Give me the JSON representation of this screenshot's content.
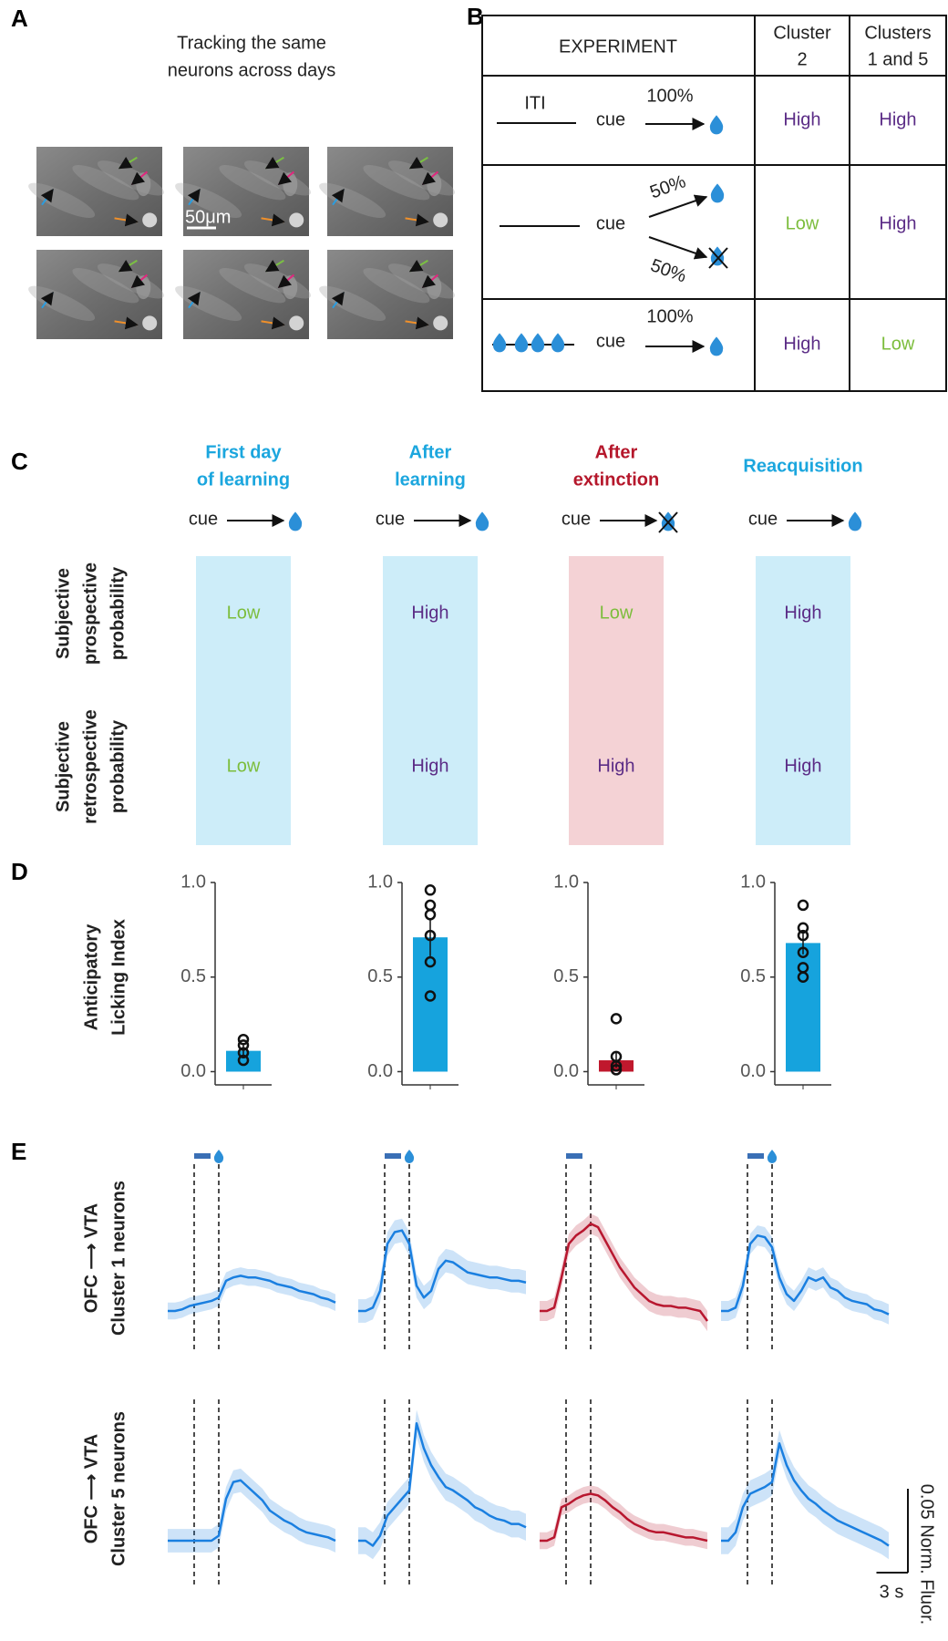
{
  "panel_labels": [
    "A",
    "B",
    "C",
    "D",
    "E"
  ],
  "level_colors": {
    "High": "#5b2c86",
    "Low": "#7cbd3c"
  },
  "panel_a": {
    "title_lines": [
      "Tracking the same",
      "neurons across days"
    ],
    "scale_bar": "50μm"
  },
  "panel_b": {
    "header": {
      "experiment": "EXPERIMENT",
      "col1": [
        "Cluster",
        "2"
      ],
      "col2": [
        "Clusters",
        "1 and 5"
      ]
    },
    "rows": [
      {
        "iti": "ITI",
        "cue": "cue",
        "prob": "100%",
        "cluster2": "High",
        "clusters15": "High"
      },
      {
        "cue": "cue",
        "prob_up": "50%",
        "prob_down": "50%",
        "cluster2": "Low",
        "clusters15": "High"
      },
      {
        "cue": "cue",
        "prob": "100%",
        "cluster2": "High",
        "clusters15": "Low"
      }
    ]
  },
  "panel_c": {
    "row_labels": [
      [
        "Subjective",
        "prospective",
        "probability"
      ],
      [
        "Subjective",
        "retrospective",
        "probability"
      ]
    ],
    "columns": [
      {
        "title": [
          "First day",
          "of learning"
        ],
        "color": "#1ba6de",
        "box_color": "#cdedf9",
        "cue": "cue",
        "prospective": "Low",
        "retrospective": "Low"
      },
      {
        "title": [
          "After",
          "learning"
        ],
        "color": "#1ba6de",
        "box_color": "#cdedf9",
        "cue": "cue",
        "prospective": "High",
        "retrospective": "High"
      },
      {
        "title": [
          "After",
          "extinction"
        ],
        "color": "#b5172b",
        "box_color": "#f4d2d5",
        "cue": "cue",
        "prospective": "Low",
        "retrospective": "High"
      },
      {
        "title": [
          "Reacquisition"
        ],
        "color": "#1ba6de",
        "box_color": "#cdedf9",
        "cue": "cue",
        "prospective": "High",
        "retrospective": "High"
      }
    ]
  },
  "chart_data": [
    {
      "type": "bar",
      "ylabel": [
        "Anticipatory",
        "Licking Index"
      ],
      "ylim": [
        -0.07,
        1
      ],
      "yticks": [
        {
          "value": 0,
          "label": "0.0"
        },
        {
          "value": 0.5,
          "label": "0.5"
        },
        {
          "value": 1,
          "label": "1.0"
        }
      ],
      "values": [
        0.11,
        0.71,
        0.06,
        0.68
      ],
      "errors": [
        0.03,
        0.1,
        0.04,
        0.06
      ],
      "colors": [
        "#16a3dd",
        "#16a3dd",
        "#c0182d",
        "#16a3dd"
      ],
      "points": [
        [
          0.17,
          0.14,
          0.1,
          0.06
        ],
        [
          0.96,
          0.88,
          0.83,
          0.72,
          0.58,
          0.4
        ],
        [
          0.28,
          0.08,
          0.03,
          0.01
        ],
        [
          0.88,
          0.76,
          0.72,
          0.63,
          0.55,
          0.5
        ]
      ]
    },
    {
      "type": "line",
      "row_labels": [
        [
          "OFC ⟶ VTA",
          "Cluster 1 neurons"
        ],
        [
          "OFC ⟶ VTA",
          "Cluster 5 neurons"
        ]
      ],
      "scale_y": {
        "value": 0.05,
        "label": "0.05 Norm. Fluor."
      },
      "scale_x": {
        "value": 3,
        "label": "3 s"
      },
      "rows": [
        {
          "series": [
            {
              "color": "#1a7fe0",
              "sem": 0.005,
              "values": [
                0,
                0,
                0.001,
                0.003,
                0.004,
                0.005,
                0.006,
                0.008,
                0.018,
                0.02,
                0.021,
                0.02,
                0.02,
                0.019,
                0.018,
                0.016,
                0.015,
                0.014,
                0.012,
                0.011,
                0.01,
                0.008,
                0.007,
                0.005
              ]
            },
            {
              "color": "#1a7fe0",
              "sem": 0.007,
              "values": [
                0,
                0,
                0.002,
                0.012,
                0.04,
                0.047,
                0.048,
                0.04,
                0.015,
                0.008,
                0.012,
                0.025,
                0.03,
                0.029,
                0.026,
                0.023,
                0.022,
                0.021,
                0.02,
                0.02,
                0.019,
                0.018,
                0.018,
                0.017
              ]
            },
            {
              "color": "#b8172f",
              "sem": 0.006,
              "values": [
                0,
                0,
                0.002,
                0.02,
                0.04,
                0.045,
                0.048,
                0.052,
                0.05,
                0.042,
                0.034,
                0.026,
                0.02,
                0.014,
                0.01,
                0.006,
                0.004,
                0.003,
                0.003,
                0.002,
                0.002,
                0.001,
                0,
                -0.006
              ]
            },
            {
              "color": "#1a7fe0",
              "sem": 0.006,
              "values": [
                0,
                0,
                0.002,
                0.015,
                0.04,
                0.045,
                0.044,
                0.038,
                0.02,
                0.01,
                0.006,
                0.012,
                0.02,
                0.018,
                0.02,
                0.014,
                0.012,
                0.008,
                0.006,
                0.005,
                0.004,
                0.001,
                0,
                -0.002
              ]
            }
          ]
        },
        {
          "series": [
            {
              "color": "#1a7fe0",
              "sem": 0.007,
              "values": [
                0,
                0,
                0,
                0,
                0,
                0,
                0,
                0.003,
                0.025,
                0.035,
                0.036,
                0.032,
                0.028,
                0.024,
                0.018,
                0.015,
                0.012,
                0.01,
                0.007,
                0.005,
                0.004,
                0.003,
                0.002,
                0
              ]
            },
            {
              "color": "#1a7fe0",
              "sem": 0.008,
              "values": [
                0,
                0,
                -0.003,
                0.003,
                0.015,
                0.02,
                0.025,
                0.03,
                0.07,
                0.055,
                0.045,
                0.038,
                0.032,
                0.03,
                0.027,
                0.024,
                0.02,
                0.018,
                0.015,
                0.013,
                0.012,
                0.01,
                0.01,
                0.008
              ]
            },
            {
              "color": "#b8172f",
              "sem": 0.005,
              "values": [
                0,
                0,
                0.002,
                0.02,
                0.022,
                0.025,
                0.027,
                0.028,
                0.027,
                0.024,
                0.02,
                0.017,
                0.013,
                0.01,
                0.008,
                0.006,
                0.005,
                0.005,
                0.004,
                0.003,
                0.002,
                0.002,
                0.001,
                0
              ]
            },
            {
              "color": "#1a7fe0",
              "sem": 0.008,
              "values": [
                0,
                0,
                0.005,
                0.02,
                0.028,
                0.03,
                0.032,
                0.035,
                0.058,
                0.045,
                0.036,
                0.03,
                0.025,
                0.022,
                0.018,
                0.015,
                0.012,
                0.01,
                0.008,
                0.006,
                0.004,
                0.002,
                0,
                -0.003
              ]
            }
          ]
        }
      ]
    }
  ]
}
